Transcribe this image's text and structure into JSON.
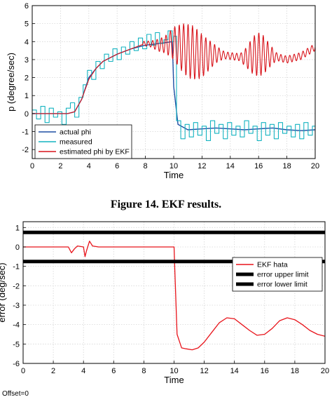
{
  "chart_data": [
    {
      "type": "line",
      "xlabel": "Time",
      "ylabel": "p  (degree/sec)",
      "xlim": [
        0,
        20
      ],
      "ylim": [
        -2.5,
        6
      ],
      "xticks": [
        0,
        2,
        4,
        6,
        8,
        10,
        12,
        14,
        16,
        18,
        20
      ],
      "yticks": [
        -2,
        -1,
        0,
        1,
        2,
        3,
        4,
        5,
        6
      ],
      "grid": true,
      "legend": "bottom-left",
      "series": [
        {
          "name": "actual phi",
          "color": "#1f4ea3",
          "x": [
            0,
            2.5,
            3,
            3.5,
            4,
            4.5,
            5,
            6,
            7,
            8,
            9,
            9.9,
            10,
            10.3,
            11,
            12,
            13,
            14,
            15,
            16,
            17,
            18,
            19,
            20
          ],
          "y": [
            0,
            0,
            0.1,
            0.8,
            2.0,
            2.5,
            2.9,
            3.3,
            3.6,
            3.8,
            3.9,
            4.0,
            1.5,
            -0.6,
            -0.9,
            -0.85,
            -0.8,
            -0.85,
            -0.9,
            -0.85,
            -0.8,
            -0.9,
            -0.95,
            -0.9
          ]
        },
        {
          "name": "measured",
          "color": "#14b3c0",
          "x": [
            0,
            0.3,
            0.6,
            0.9,
            1.2,
            1.5,
            1.8,
            2.1,
            2.4,
            2.7,
            3.0,
            3.3,
            3.6,
            3.9,
            4.2,
            4.5,
            4.8,
            5.1,
            5.4,
            5.7,
            6.0,
            6.3,
            6.6,
            6.9,
            7.2,
            7.5,
            7.8,
            8.1,
            8.4,
            8.7,
            9.0,
            9.3,
            9.6,
            9.9,
            10.0,
            10.2,
            10.5,
            10.8,
            11.1,
            11.4,
            11.7,
            12.0,
            12.3,
            12.6,
            12.9,
            13.2,
            13.5,
            13.8,
            14.1,
            14.4,
            14.7,
            15.0,
            15.3,
            15.6,
            15.9,
            16.2,
            16.5,
            16.8,
            17.1,
            17.4,
            17.7,
            18.0,
            18.3,
            18.6,
            18.9,
            19.2,
            19.5,
            19.8,
            20.0
          ],
          "y": [
            0.2,
            -0.3,
            0.4,
            -0.5,
            0.3,
            -0.2,
            0.1,
            -0.6,
            0.3,
            0.6,
            -0.2,
            0.9,
            1.6,
            2.4,
            1.9,
            2.9,
            2.5,
            3.3,
            2.9,
            3.6,
            3.0,
            3.7,
            3.3,
            4.0,
            3.5,
            4.2,
            3.6,
            4.4,
            3.8,
            4.5,
            3.9,
            4.1,
            4.6,
            4.0,
            4.3,
            -0.4,
            -1.4,
            -0.6,
            -1.3,
            -0.5,
            -1.2,
            -0.7,
            -1.5,
            -0.4,
            -1.1,
            -0.6,
            -1.4,
            -0.5,
            -1.2,
            -0.7,
            -1.3,
            -0.4,
            -1.1,
            -0.7,
            -1.5,
            -0.5,
            -1.2,
            -0.6,
            -1.4,
            -0.5,
            -1.1,
            -0.7,
            -1.3,
            -0.6,
            -1.4,
            -0.5,
            -1.2,
            -0.7,
            -0.9
          ]
        },
        {
          "name": "estimated phi by EKF",
          "color": "#d8141b",
          "x": [
            0,
            2.5,
            3,
            3.5,
            4,
            4.5,
            5,
            6,
            7,
            8,
            9,
            10,
            11,
            12,
            13,
            14,
            15,
            16,
            17,
            18,
            19,
            20
          ],
          "y": [
            0,
            0,
            0.1,
            0.8,
            1.9,
            2.5,
            2.9,
            3.3,
            3.6,
            3.9,
            3.8,
            3.9,
            3.5,
            3.2,
            3.3,
            3.2,
            3.1,
            3.3,
            3.2,
            3.0,
            3.2,
            3.7
          ]
        }
      ]
    },
    {
      "type": "line",
      "xlabel": "Time",
      "ylabel": "error  (deg/sec)",
      "xlim": [
        0,
        20
      ],
      "ylim": [
        -6,
        1.3
      ],
      "xticks": [
        0,
        2,
        4,
        6,
        8,
        10,
        12,
        14,
        16,
        18,
        20
      ],
      "yticks": [
        -6,
        -5,
        -4,
        -3,
        -2,
        -1,
        0,
        1
      ],
      "grid": true,
      "legend": "right",
      "series": [
        {
          "name": "EKF hata",
          "color": "#e8141b",
          "x": [
            0,
            3.0,
            3.2,
            3.4,
            3.6,
            4.0,
            4.1,
            4.2,
            4.4,
            4.6,
            5,
            8,
            10,
            10.05,
            10.2,
            10.5,
            10.8,
            11.2,
            11.6,
            12.0,
            12.5,
            13.0,
            13.5,
            14.0,
            14.5,
            15.0,
            15.5,
            16.0,
            16.5,
            17.0,
            17.5,
            18.0,
            18.5,
            19.0,
            19.5,
            20.0
          ],
          "y": [
            0,
            0,
            -0.3,
            -0.1,
            0.05,
            0,
            -0.5,
            -0.2,
            0.3,
            0.05,
            0,
            0,
            0,
            -1.2,
            -4.5,
            -5.2,
            -5.25,
            -5.3,
            -5.2,
            -4.9,
            -4.4,
            -3.9,
            -3.65,
            -3.7,
            -4.0,
            -4.3,
            -4.55,
            -4.5,
            -4.2,
            -3.8,
            -3.65,
            -3.75,
            -4.0,
            -4.3,
            -4.5,
            -4.6
          ]
        },
        {
          "name": "error upper limit",
          "color": "#000000",
          "x": [
            0,
            20
          ],
          "y": [
            0.75,
            0.75
          ]
        },
        {
          "name": "error lower limit",
          "color": "#000000",
          "x": [
            0,
            20
          ],
          "y": [
            -0.75,
            -0.75
          ]
        }
      ]
    }
  ],
  "captions": {
    "top": "Figure 14. EKF results.",
    "offset": "Offset=0"
  }
}
